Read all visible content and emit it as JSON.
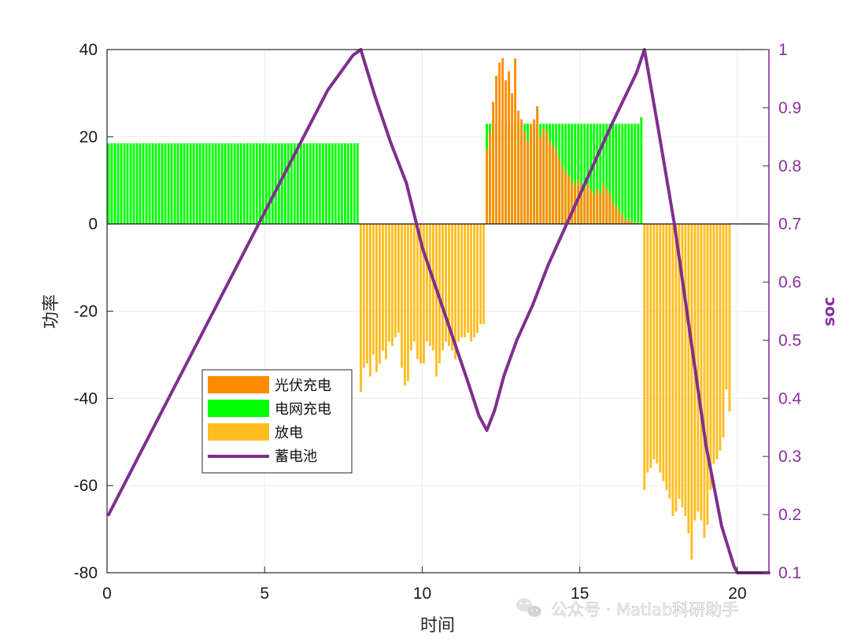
{
  "chart_data": {
    "type": "bar",
    "xlabel": "时间",
    "ylabel_left": "功率",
    "ylabel_right": "soc",
    "xlim": [
      0,
      21
    ],
    "ylim_left": [
      -80,
      40
    ],
    "ylim_right": [
      0.1,
      1
    ],
    "x_ticks": [
      "0",
      "5",
      "10",
      "15",
      "20"
    ],
    "y_ticks_left": [
      "-80",
      "-60",
      "-40",
      "-20",
      "0",
      "20",
      "40"
    ],
    "y_ticks_right": [
      "0.1",
      "0.2",
      "0.3",
      "0.4",
      "0.5",
      "0.6",
      "0.7",
      "0.8",
      "0.9",
      "1"
    ],
    "grid": true,
    "legend_position": "lower-left",
    "series": [
      {
        "name": "光伏充电",
        "type": "bar",
        "color": "#ff8c00",
        "x": [
          12.05,
          12.15,
          12.25,
          12.35,
          12.45,
          12.55,
          12.65,
          12.75,
          12.85,
          12.95,
          13.05,
          13.15,
          13.25,
          13.35,
          13.45,
          13.55,
          13.65,
          13.75,
          13.85,
          13.95,
          14.05,
          14.15,
          14.25,
          14.35,
          14.45,
          14.55,
          14.65,
          14.75,
          14.85,
          14.95,
          15.05,
          15.15,
          15.25,
          15.35,
          15.45,
          15.55,
          15.65,
          15.75,
          15.85,
          15.95,
          16.05,
          16.15,
          16.25,
          16.35,
          16.45,
          16.55,
          16.65,
          16.75,
          16.85,
          16.95
        ],
        "values": [
          17,
          21,
          28,
          34,
          37,
          38,
          33,
          35,
          30,
          38,
          26,
          24,
          21,
          19,
          23,
          24,
          27,
          20,
          22,
          21,
          19,
          18,
          17,
          15,
          13,
          12,
          11,
          10,
          9,
          10,
          9,
          8,
          9,
          8,
          7,
          8,
          7,
          9,
          8,
          7,
          5,
          4,
          3,
          2,
          1,
          1,
          0.5,
          0.3,
          0.2,
          0.1
        ]
      },
      {
        "name": "电网充电",
        "type": "bar",
        "color": "#00ff00",
        "x": [
          0.05,
          0.15,
          0.25,
          0.35,
          0.45,
          0.55,
          0.65,
          0.75,
          0.85,
          0.95,
          1.05,
          1.15,
          1.25,
          1.35,
          1.45,
          1.55,
          1.65,
          1.75,
          1.85,
          1.95,
          2.05,
          2.15,
          2.25,
          2.35,
          2.45,
          2.55,
          2.65,
          2.75,
          2.85,
          2.95,
          3.05,
          3.15,
          3.25,
          3.35,
          3.45,
          3.55,
          3.65,
          3.75,
          3.85,
          3.95,
          4.05,
          4.15,
          4.25,
          4.35,
          4.45,
          4.55,
          4.65,
          4.75,
          4.85,
          4.95,
          5.05,
          5.15,
          5.25,
          5.35,
          5.45,
          5.55,
          5.65,
          5.75,
          5.85,
          5.95,
          6.05,
          6.15,
          6.25,
          6.35,
          6.45,
          6.55,
          6.65,
          6.75,
          6.85,
          6.95,
          7.05,
          7.15,
          7.25,
          7.35,
          7.45,
          7.55,
          7.65,
          7.75,
          7.85,
          7.95,
          12.05,
          12.15,
          12.25,
          12.35,
          12.45,
          12.55,
          12.65,
          12.75,
          12.85,
          12.95,
          13.05,
          13.15,
          13.25,
          13.35,
          13.45,
          13.55,
          13.65,
          13.75,
          13.85,
          13.95,
          14.05,
          14.15,
          14.25,
          14.35,
          14.45,
          14.55,
          14.65,
          14.75,
          14.85,
          14.95,
          15.05,
          15.15,
          15.25,
          15.35,
          15.45,
          15.55,
          15.65,
          15.75,
          15.85,
          15.95,
          16.05,
          16.15,
          16.25,
          16.35,
          16.45,
          16.55,
          16.65,
          16.75,
          16.85,
          16.95
        ],
        "values": [
          18.5,
          18.5,
          18.5,
          18.5,
          18.5,
          18.5,
          18.5,
          18.5,
          18.5,
          18.5,
          18.5,
          18.5,
          18.5,
          18.5,
          18.5,
          18.5,
          18.5,
          18.5,
          18.5,
          18.5,
          18.5,
          18.5,
          18.5,
          18.5,
          18.5,
          18.5,
          18.5,
          18.5,
          18.5,
          18.5,
          18.5,
          18.5,
          18.5,
          18.5,
          18.5,
          18.5,
          18.5,
          18.5,
          18.5,
          18.5,
          18.5,
          18.5,
          18.5,
          18.5,
          18.5,
          18.5,
          18.5,
          18.5,
          18.5,
          18.5,
          18.5,
          18.5,
          18.5,
          18.5,
          18.5,
          18.5,
          18.5,
          18.5,
          18.5,
          18.5,
          18.5,
          18.5,
          18.5,
          18.5,
          18.5,
          18.5,
          18.5,
          18.5,
          18.5,
          18.5,
          18.5,
          18.5,
          18.5,
          18.5,
          18.5,
          18.5,
          18.5,
          18.5,
          18.5,
          18.5,
          23,
          23,
          23,
          23,
          23,
          23,
          23,
          23,
          23,
          23,
          23,
          23,
          23,
          23,
          23,
          23,
          23,
          23,
          23,
          23,
          23,
          23,
          23,
          23,
          23,
          23,
          23,
          23,
          23,
          23,
          23,
          23,
          23,
          23,
          23,
          23,
          23,
          23,
          23,
          23,
          23,
          23,
          23,
          23,
          23,
          23,
          23,
          23,
          23,
          24.5
        ]
      },
      {
        "name": "放电",
        "type": "bar",
        "color": "#ffbe22",
        "x": [
          8.05,
          8.15,
          8.25,
          8.35,
          8.45,
          8.55,
          8.65,
          8.75,
          8.85,
          8.95,
          9.05,
          9.15,
          9.25,
          9.35,
          9.45,
          9.55,
          9.65,
          9.75,
          9.85,
          9.95,
          10.05,
          10.15,
          10.25,
          10.35,
          10.45,
          10.55,
          10.65,
          10.75,
          10.85,
          10.95,
          11.05,
          11.15,
          11.25,
          11.35,
          11.45,
          11.55,
          11.65,
          11.75,
          11.85,
          11.95,
          17.05,
          17.15,
          17.25,
          17.35,
          17.45,
          17.55,
          17.65,
          17.75,
          17.85,
          17.95,
          18.05,
          18.15,
          18.25,
          18.35,
          18.45,
          18.55,
          18.65,
          18.75,
          18.85,
          18.95,
          19.05,
          19.15,
          19.25,
          19.35,
          19.45,
          19.55,
          19.65,
          19.75
        ],
        "values": [
          -38.5,
          -33,
          -32,
          -35,
          -30,
          -34,
          -32,
          -29,
          -31,
          -27,
          -28,
          -26,
          -25,
          -33,
          -37,
          -36,
          -29,
          -27,
          -31,
          -32,
          -32,
          -27,
          -28,
          -29,
          -35,
          -32,
          -29,
          -27,
          -28,
          -29,
          -31,
          -27,
          -26,
          -26,
          -25,
          -27,
          -26,
          -25,
          -23,
          -23,
          -61,
          -57,
          -56,
          -54,
          -55,
          -57,
          -59,
          -61,
          -63,
          -67,
          -66,
          -63,
          -65,
          -67,
          -71,
          -77,
          -68,
          -66,
          -68,
          -72,
          -69,
          -61,
          -55,
          -54,
          -52,
          -49,
          -38,
          -43
        ]
      },
      {
        "name": "蓄电池",
        "type": "line",
        "axis": "right",
        "color": "#7e2f8e",
        "x": [
          0.05,
          1,
          2,
          3,
          4,
          5,
          6,
          7,
          7.8,
          8.05,
          8.5,
          9,
          9.5,
          10,
          10.5,
          11,
          11.5,
          11.8,
          12.05,
          12.3,
          12.6,
          13,
          13.5,
          14,
          15,
          16,
          16.8,
          17.05,
          17.5,
          18,
          18.5,
          19,
          19.5,
          19.9,
          20,
          20.5,
          21
        ],
        "values": [
          0.2,
          0.3,
          0.405,
          0.51,
          0.615,
          0.72,
          0.825,
          0.93,
          0.99,
          1.0,
          0.92,
          0.84,
          0.77,
          0.66,
          0.58,
          0.5,
          0.42,
          0.37,
          0.345,
          0.38,
          0.44,
          0.5,
          0.56,
          0.63,
          0.75,
          0.87,
          0.96,
          1.0,
          0.86,
          0.7,
          0.51,
          0.32,
          0.18,
          0.11,
          0.1,
          0.1,
          0.1
        ]
      }
    ],
    "legend": [
      "光伏充电",
      "电网充电",
      "放电",
      "蓄电池"
    ]
  },
  "watermark": {
    "icon": "wechat-icon",
    "text": "公众号 · Matlab科研助手"
  }
}
